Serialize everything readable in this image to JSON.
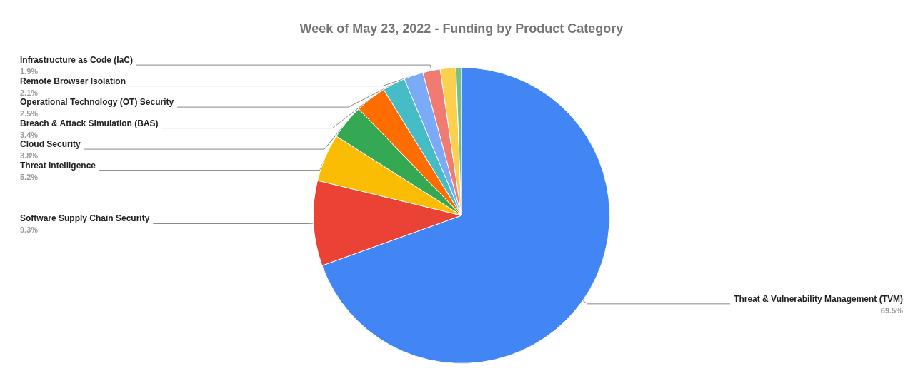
{
  "chart_data": {
    "type": "pie",
    "title": "Week of May 23, 2022 - Funding by Product Category",
    "categories": [
      "Threat & Vulnerability Management (TVM)",
      "Software Supply Chain Security",
      "Threat Intelligence",
      "Cloud Security",
      "Breach & Attack Simulation (BAS)",
      "Operational Technology (OT) Security",
      "Remote Browser Isolation",
      "Infrastructure as Code (IaC)",
      null,
      null
    ],
    "values": [
      69.5,
      9.3,
      5.2,
      3.8,
      3.4,
      2.5,
      2.1,
      1.9,
      1.7,
      0.6
    ],
    "value_labels": [
      "69.5%",
      "9.3%",
      "5.2%",
      "3.8%",
      "3.4%",
      "2.5%",
      "2.1%",
      "1.9%",
      null,
      null
    ],
    "colors": [
      "#4285f4",
      "#ea4335",
      "#fbbc04",
      "#34a853",
      "#ff6d01",
      "#46bdc6",
      "#7baaf7",
      "#f07b72",
      "#fcd04f",
      "#71c287"
    ]
  }
}
